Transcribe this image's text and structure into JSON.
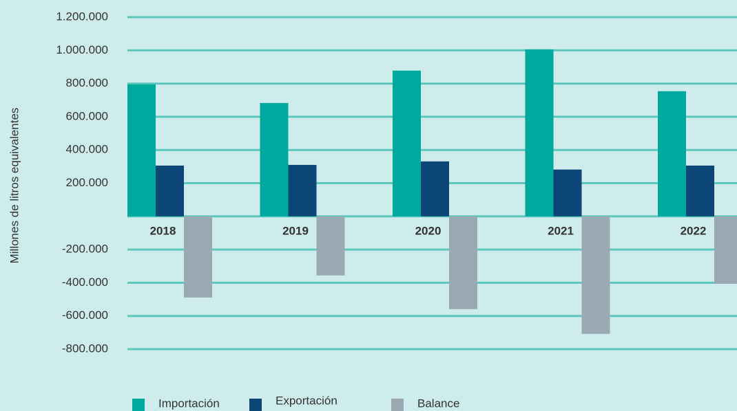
{
  "chart_data": {
    "type": "bar",
    "y_axis_label": "Millones de litros equivalentes",
    "categories": [
      "2018",
      "2019",
      "2020",
      "2021",
      "2022"
    ],
    "series": [
      {
        "name": "Importación",
        "color": "#00a99d",
        "values": [
          795000,
          683000,
          878000,
          1006000,
          754000
        ]
      },
      {
        "name": "Exportación",
        "color": "#0b4677",
        "values": [
          306000,
          310000,
          331000,
          282000,
          306000
        ]
      },
      {
        "name": "Balance",
        "color": "#9aa9b3",
        "values": [
          -489000,
          -356000,
          -559000,
          -708000,
          -406000
        ]
      }
    ],
    "ylim": [
      -800000,
      1200000
    ],
    "yticks": [
      {
        "value": 1200000,
        "label": "1.200.000"
      },
      {
        "value": 1000000,
        "label": "1.000.000"
      },
      {
        "value": 800000,
        "label": "800.000"
      },
      {
        "value": 600000,
        "label": "600.000"
      },
      {
        "value": 400000,
        "label": "400.000"
      },
      {
        "value": 200000,
        "label": "200.000"
      },
      {
        "value": -200000,
        "label": "-200.000"
      },
      {
        "value": -400000,
        "label": "-400.000"
      },
      {
        "value": -600000,
        "label": "-600.000"
      },
      {
        "value": -800000,
        "label": "-800.000"
      }
    ],
    "grid": true,
    "grid_color": "#5cc7bc",
    "legend": "bottom"
  }
}
